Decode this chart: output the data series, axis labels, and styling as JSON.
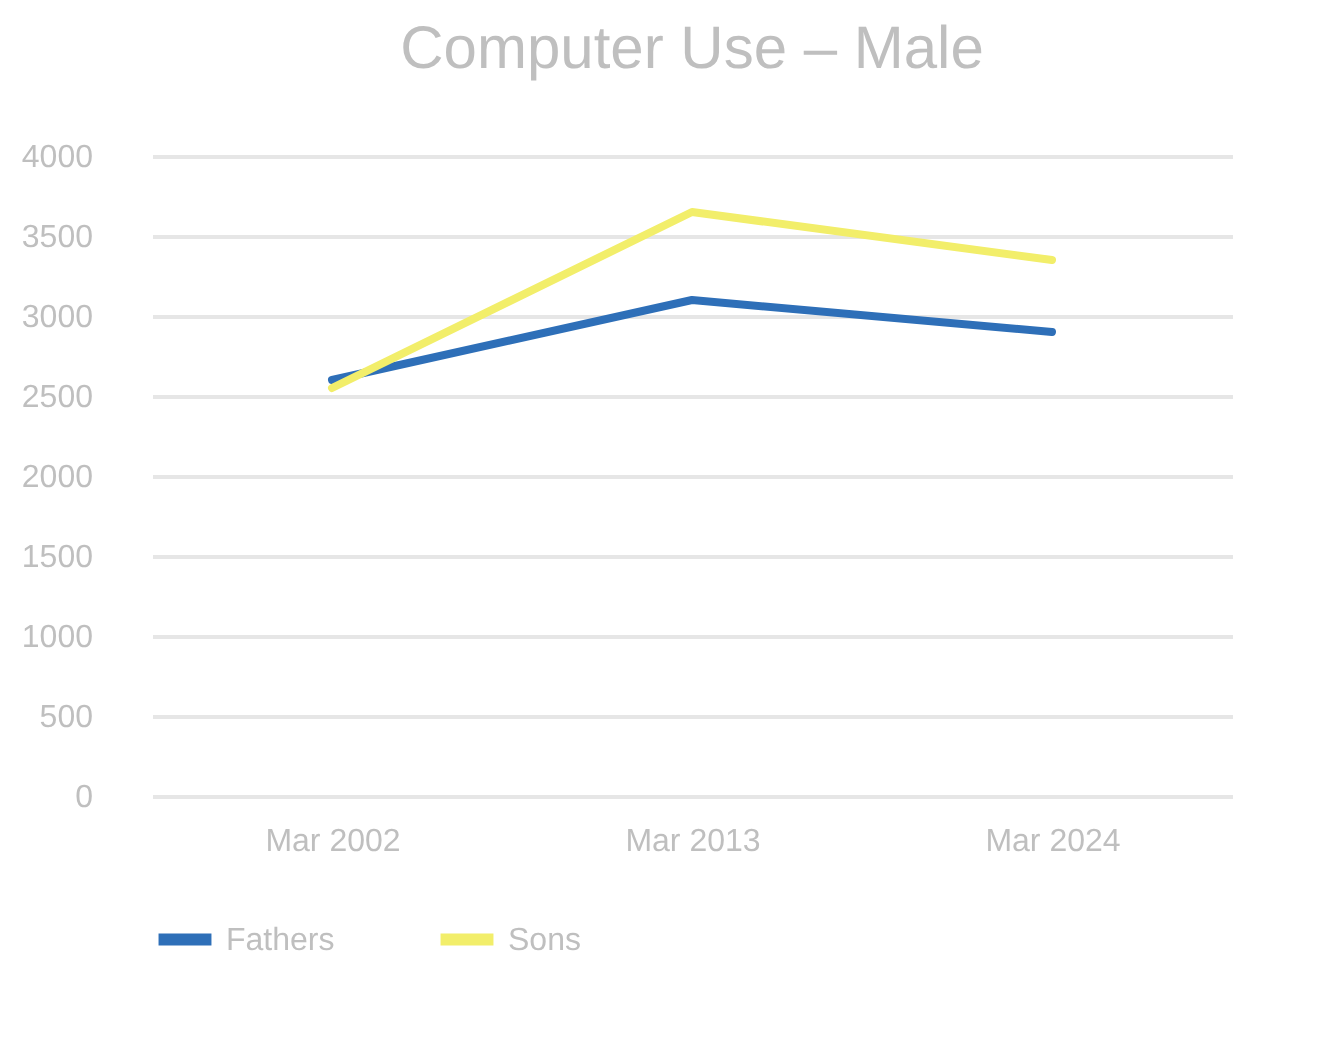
{
  "chart_data": {
    "type": "line",
    "title": "Computer Use – Male",
    "categories": [
      "Mar 2002",
      "Mar 2013",
      "Mar 2024"
    ],
    "series": [
      {
        "name": "Fathers",
        "color": "#2e6fb8",
        "values": [
          2600,
          3100,
          2900
        ]
      },
      {
        "name": "Sons",
        "color": "#f2ee6a",
        "values": [
          2550,
          3650,
          3350
        ]
      }
    ],
    "ylim": [
      0,
      4000
    ],
    "yticks": [
      0,
      500,
      1000,
      1500,
      2000,
      2500,
      3000,
      3500,
      4000
    ],
    "grid": "y",
    "legend": "bottom",
    "marker": "none",
    "line_style": "solid"
  }
}
